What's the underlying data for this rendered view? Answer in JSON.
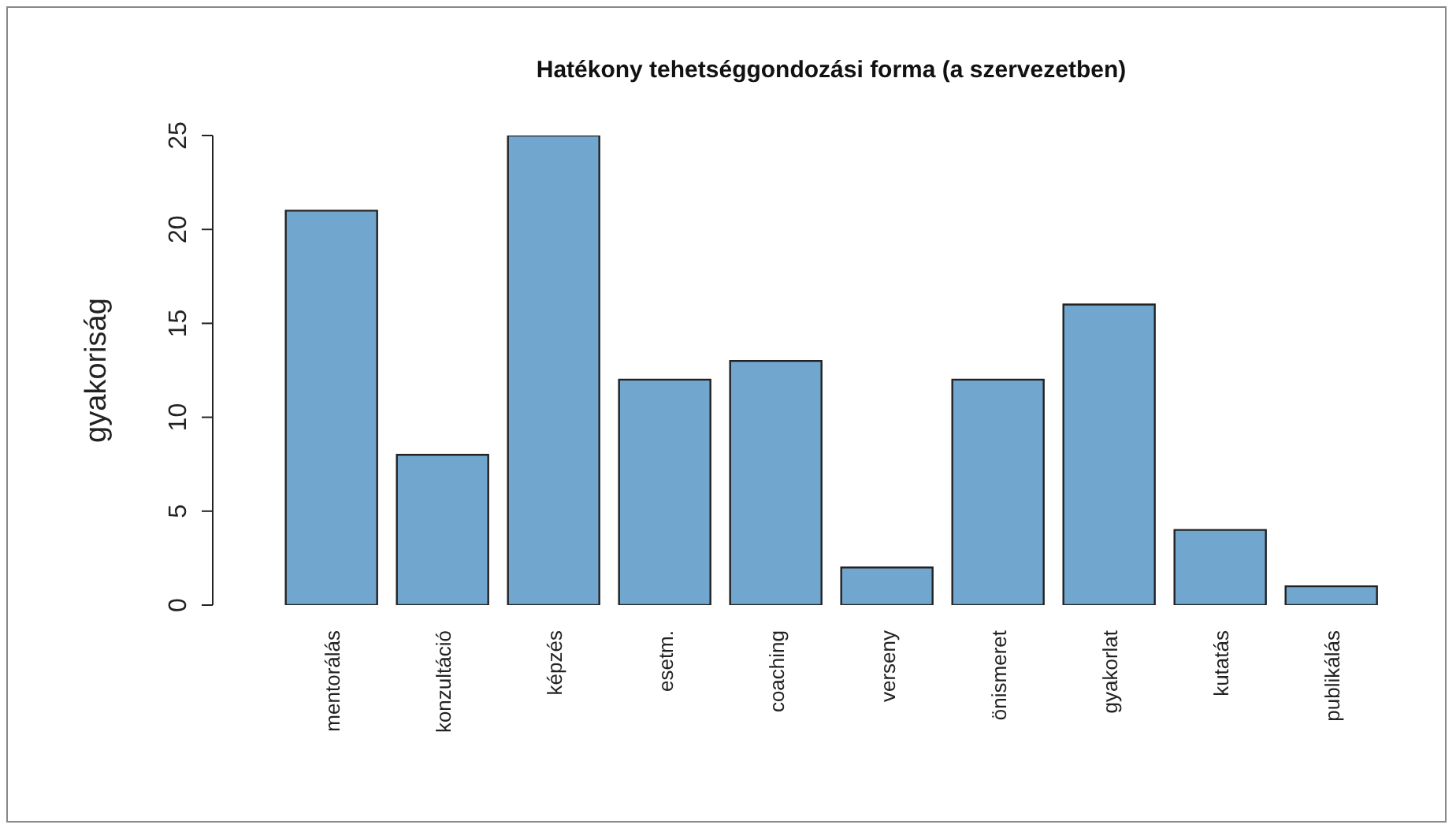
{
  "chart_data": {
    "type": "bar",
    "title": "Hatékony tehetséggondozási forma (a szervezetben)",
    "ylabel": "gyakoriság",
    "categories": [
      "mentorálás",
      "konzultáció",
      "képzés",
      "esetm.",
      "coaching",
      "verseny",
      "önismeret",
      "gyakorlat",
      "kutatás",
      "publikálás"
    ],
    "values": [
      21,
      8,
      25,
      12,
      13,
      2,
      12,
      16,
      4,
      1
    ],
    "color": "#71a7cf",
    "ylim": [
      0,
      25
    ],
    "yticks": [
      0,
      5,
      10,
      15,
      20,
      25
    ],
    "grid": false
  }
}
